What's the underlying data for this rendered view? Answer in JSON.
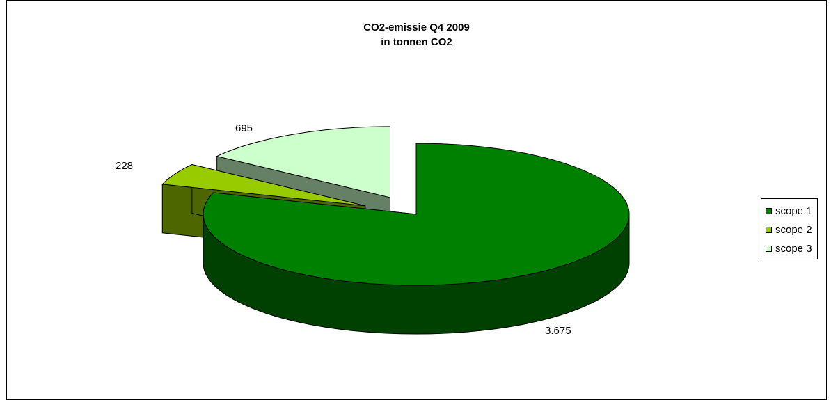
{
  "chart_data": {
    "type": "pie",
    "title": "CO2-emissie Q4 2009",
    "subtitle": "in tonnen CO2",
    "slices": [
      {
        "name": "scope 1",
        "value": 3675,
        "label": "3.675",
        "color": "#008000",
        "side_color": "#004000"
      },
      {
        "name": "scope 2",
        "value": 228,
        "label": "228",
        "color": "#99CC00",
        "side_color": "#4D6600"
      },
      {
        "name": "scope 3",
        "value": 695,
        "label": "695",
        "color": "#CCFFCC",
        "side_color": "#668066"
      }
    ],
    "legend_position": "right",
    "three_d": true,
    "exploded": true
  }
}
